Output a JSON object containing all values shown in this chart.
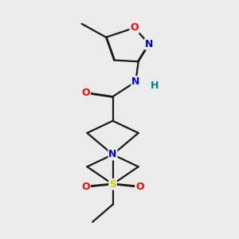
{
  "background_color": "#ebebeb",
  "bond_color": "#1a1a1a",
  "atom_colors": {
    "N": "#0000cc",
    "O": "#ff0000",
    "S": "#cccc00",
    "C": "#1a1a1a",
    "H": "#008080"
  },
  "lw": 1.6,
  "fontsize": 9
}
